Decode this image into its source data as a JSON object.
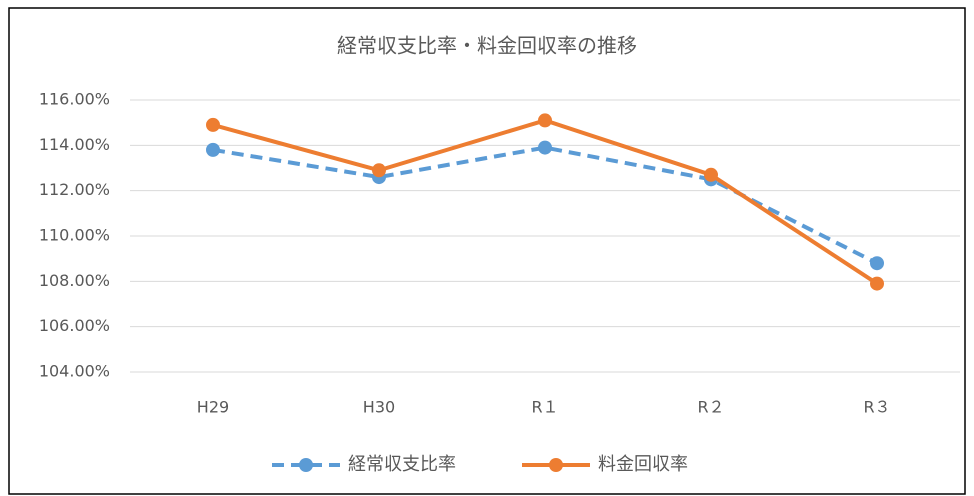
{
  "chart_data": {
    "type": "line",
    "title": "経常収支比率・料金回収率の推移",
    "categories": [
      "H29",
      "H30",
      "R１",
      "R２",
      "R３"
    ],
    "series": [
      {
        "name": "経常収支比率",
        "color": "#5b9bd5",
        "dashed": true,
        "values": [
          113.8,
          112.6,
          113.9,
          112.5,
          108.8
        ]
      },
      {
        "name": "料金回収率",
        "color": "#ed7d31",
        "dashed": false,
        "values": [
          114.9,
          112.9,
          115.1,
          112.7,
          107.9
        ]
      }
    ],
    "ylim": [
      104,
      116
    ],
    "yticks": [
      {
        "value": 104,
        "label": "104.00%"
      },
      {
        "value": 106,
        "label": "106.00%"
      },
      {
        "value": 108,
        "label": "108.00%"
      },
      {
        "value": 110,
        "label": "110.00%"
      },
      {
        "value": 112,
        "label": "112.00%"
      },
      {
        "value": 114,
        "label": "114.00%"
      },
      {
        "value": 116,
        "label": "116.00%"
      }
    ],
    "grid": true,
    "legend": "bottom"
  }
}
